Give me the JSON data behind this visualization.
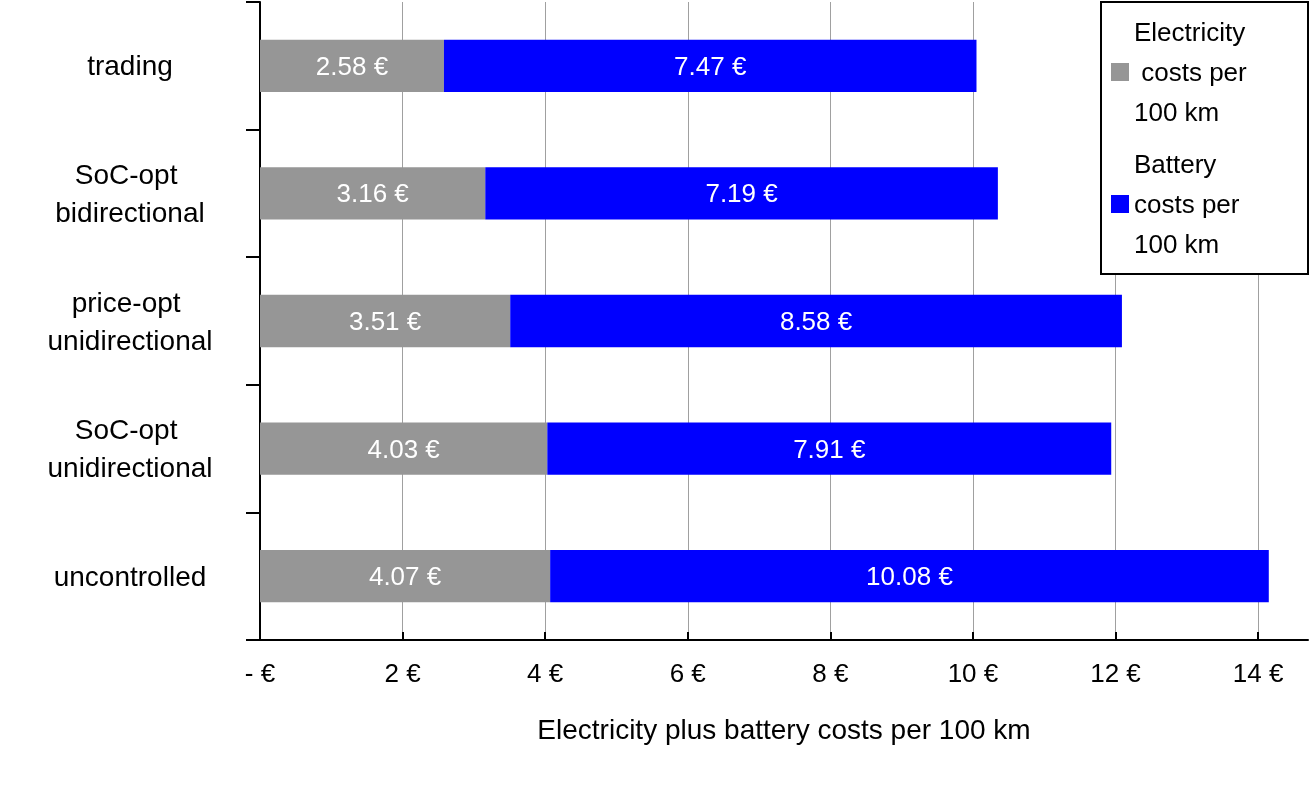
{
  "chart_data": {
    "type": "bar",
    "orientation": "horizontal",
    "stacked": true,
    "categories": [
      "trading",
      "SoC-opt bidirectional",
      "price-opt unidirectional",
      "SoC-opt unidirectional",
      "uncontrolled"
    ],
    "series": [
      {
        "name": "Electricity costs per 100 km",
        "color": "#969696",
        "values": [
          2.58,
          3.16,
          3.51,
          4.03,
          4.07
        ],
        "value_labels": [
          "2.58 €",
          "3.16 €",
          "3.51 €",
          "4.03 €",
          "4.07 €"
        ]
      },
      {
        "name": "Battery costs per 100 km",
        "color": "#0000ff",
        "values": [
          7.47,
          7.19,
          8.58,
          7.91,
          10.08
        ],
        "value_labels": [
          "7.47 €",
          "7.19 €",
          "8.58 €",
          "7.91 €",
          "10.08 €"
        ]
      }
    ],
    "xlabel": "Electricity plus battery costs per 100 km",
    "xlim": [
      0,
      14.7
    ],
    "xticks": [
      {
        "value": 0,
        "label": "- €"
      },
      {
        "value": 2,
        "label": "2 €"
      },
      {
        "value": 4,
        "label": "4 €"
      },
      {
        "value": 6,
        "label": "6 €"
      },
      {
        "value": 8,
        "label": "8 €"
      },
      {
        "value": 10,
        "label": "10 €"
      },
      {
        "value": 12,
        "label": "12 €"
      },
      {
        "value": 14,
        "label": "14 €"
      }
    ],
    "grid": "x",
    "legend": "top right"
  }
}
